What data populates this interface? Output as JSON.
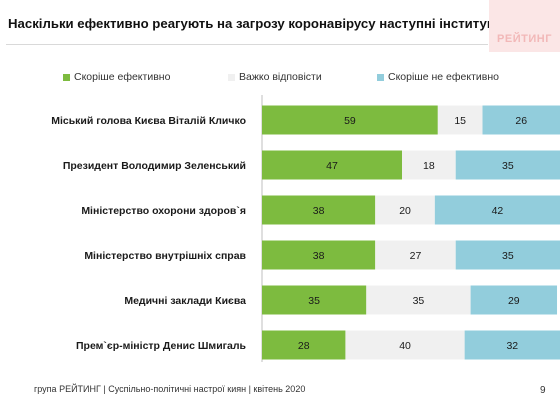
{
  "slide": {
    "title": "Наскільки ефективно реагують на загрозу коронавірусу наступні інституції…",
    "logo": "РЕЙТИНГ",
    "footer": "група РЕЙТИНГ | Суспільно-політичні настрої киян | квітень  2020",
    "page_number": "9"
  },
  "colors": {
    "effective": "#7dbb3f",
    "hard": "#f0f0f0",
    "ineffective": "#92cddc",
    "label_on_green": "#1a1a1a",
    "label_on_other": "#1a1a1a"
  },
  "chart_data": {
    "type": "bar",
    "orientation": "horizontal",
    "stacked": true,
    "xlim": [
      0,
      100
    ],
    "legend_position": "top",
    "categories": [
      "Міський голова Києва Віталій Кличко",
      "Президент Володимир Зеленський",
      "Міністерство охорони здоров`я",
      "Міністерство внутрішніх справ",
      "Медичні заклади Києва",
      "Прем`єр-міністр Денис Шмигаль"
    ],
    "series": [
      {
        "key": "effective",
        "name": "Скоріше ефективно",
        "values": [
          59,
          47,
          38,
          38,
          35,
          28
        ]
      },
      {
        "key": "hard",
        "name": "Важко відповісти",
        "values": [
          15,
          18,
          20,
          27,
          35,
          40
        ]
      },
      {
        "key": "ineffective",
        "name": "Скоріше не ефективно",
        "values": [
          26,
          35,
          42,
          35,
          29,
          32
        ]
      }
    ]
  }
}
